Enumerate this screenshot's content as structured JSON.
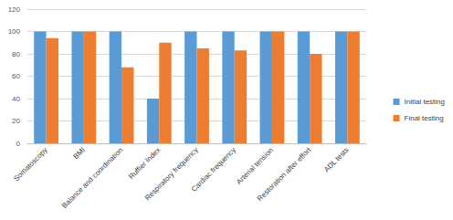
{
  "chart_data": {
    "type": "bar",
    "categories": [
      "Somatoscopy",
      "BMI",
      "Balance and coordination",
      "Ruffier Index",
      "Respiratory frequency",
      "Cardiac frequency",
      "Arterial tension",
      "Restoration after effort",
      "ADL tests"
    ],
    "series": [
      {
        "name": "Initial testing",
        "color": "#5b9bd5",
        "values": [
          100,
          100,
          100,
          40,
          100,
          100,
          100,
          100,
          100
        ]
      },
      {
        "name": "Final testing",
        "color": "#ed7d31",
        "values": [
          94,
          100,
          68,
          90,
          85,
          83,
          100,
          80,
          100
        ]
      }
    ],
    "ylim": [
      0,
      120
    ],
    "yticks": [
      0,
      20,
      40,
      60,
      80,
      100,
      120
    ],
    "grid": true,
    "legend": "right"
  }
}
